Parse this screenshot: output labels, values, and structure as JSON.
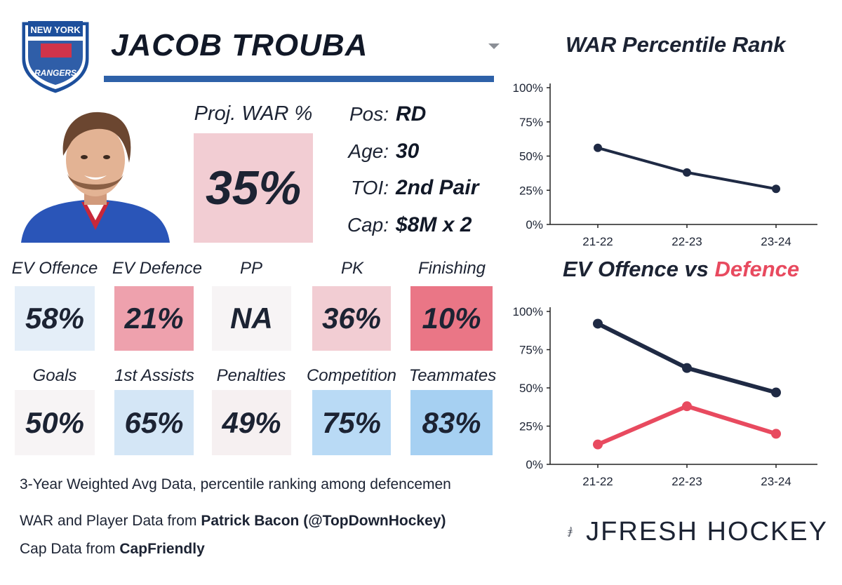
{
  "team": {
    "logo_top": "NEW YORK",
    "logo_bottom": "RANGERS"
  },
  "player": {
    "name": "JACOB TROUBA"
  },
  "projection": {
    "label": "Proj. WAR %",
    "value": "35%",
    "color": "#f2cdd3"
  },
  "info": [
    {
      "key": "Pos:",
      "value": "RD"
    },
    {
      "key": "Age:",
      "value": "30"
    },
    {
      "key": "TOI:",
      "value": "2nd Pair"
    },
    {
      "key": "Cap:",
      "value": "$8M x 2"
    }
  ],
  "metrics_row1": [
    {
      "label": "EV Offence",
      "value": "58%",
      "color": "#e4eef8"
    },
    {
      "label": "EV Defence",
      "value": "21%",
      "color": "#eea1ad"
    },
    {
      "label": "PP",
      "value": "NA",
      "color": "#f7f4f5"
    },
    {
      "label": "PK",
      "value": "36%",
      "color": "#f2cdd3"
    },
    {
      "label": "Finishing",
      "value": "10%",
      "color": "#ea7686"
    }
  ],
  "metrics_row2": [
    {
      "label": "Goals",
      "value": "50%",
      "color": "#f7f4f5"
    },
    {
      "label": "1st Assists",
      "value": "65%",
      "color": "#d4e6f6"
    },
    {
      "label": "Penalties",
      "value": "49%",
      "color": "#f6f0f1"
    },
    {
      "label": "Competition",
      "value": "75%",
      "color": "#b9daf5"
    },
    {
      "label": "Teammates",
      "value": "83%",
      "color": "#a6d0f2"
    }
  ],
  "footnotes": {
    "line1": "3-Year Weighted Avg Data, percentile ranking among defencemen",
    "line2_prefix": "WAR and Player Data from ",
    "line2_bold": "Patrick Bacon (@TopDownHockey)",
    "line3_prefix": "Cap Data from ",
    "line3_bold": "CapFriendly"
  },
  "brand": {
    "name": "JFRESH HOCKEY"
  },
  "chart_data": [
    {
      "type": "line",
      "title": "WAR Percentile Rank",
      "categories": [
        "21-22",
        "22-23",
        "23-24"
      ],
      "series": [
        {
          "name": "WAR",
          "values": [
            56,
            38,
            26
          ],
          "color": "#1f2a44"
        }
      ],
      "ylim": [
        0,
        100
      ],
      "yticks": [
        "0%",
        "25%",
        "50%",
        "75%",
        "100%"
      ],
      "xlabel": "",
      "ylabel": ""
    },
    {
      "type": "line",
      "title": "EV Offence vs Defence",
      "title_part1": "EV Offence vs ",
      "title_part2": "Defence",
      "categories": [
        "21-22",
        "22-23",
        "23-24"
      ],
      "series": [
        {
          "name": "EV Offence",
          "values": [
            92,
            63,
            47
          ],
          "color": "#1f2a44"
        },
        {
          "name": "Defence",
          "values": [
            13,
            38,
            20
          ],
          "color": "#e84a5f"
        }
      ],
      "ylim": [
        0,
        100
      ],
      "yticks": [
        "0%",
        "25%",
        "50%",
        "75%",
        "100%"
      ],
      "xlabel": "",
      "ylabel": ""
    }
  ]
}
